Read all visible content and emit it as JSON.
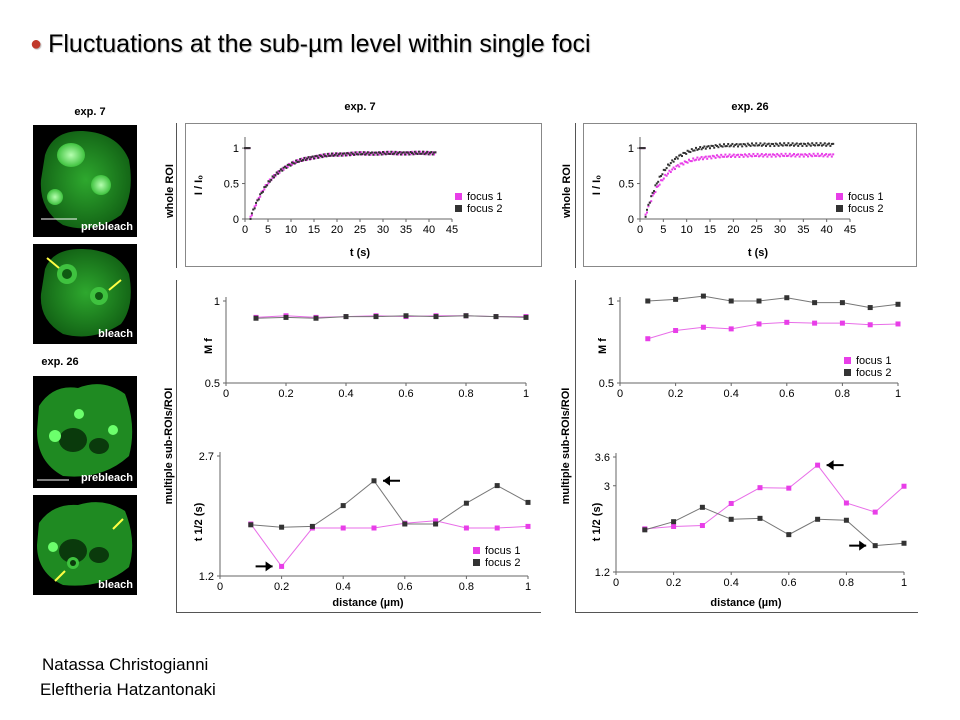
{
  "title": "Fluctuations at the sub-µm level within single foci",
  "images": {
    "exp7_header": "exp. 7",
    "exp26_header": "exp. 26",
    "prebleach": "prebleach",
    "bleach": "bleach"
  },
  "columns": {
    "left": "exp. 7",
    "right": "exp. 26"
  },
  "row_labels": {
    "top": "whole ROI",
    "bottom": "multiple sub-ROIs/ROI"
  },
  "authors": [
    "Natassa Christogianni",
    "Eleftheria Hatzantonaki"
  ],
  "colors": {
    "focus1": "#e83ee8",
    "focus2": "#333333",
    "bullet": "#c0392b",
    "cell_green": "#3fc23f"
  },
  "chart_data": [
    {
      "id": "exp7_whole",
      "type": "scatter",
      "xlabel": "t (s)",
      "ylabel": "I / I₀",
      "xlim": [
        0,
        45
      ],
      "ylim": [
        0,
        1.1
      ],
      "xticks": [
        0,
        5,
        10,
        15,
        20,
        25,
        30,
        35,
        40,
        45
      ],
      "yticks": [
        0,
        0.5,
        1
      ],
      "legend": "right",
      "series": [
        {
          "name": "focus 1",
          "color": "#e83ee8",
          "model": {
            "pre": 1.0,
            "t0": 1.2,
            "start": 0.02,
            "plateau": 0.93,
            "tau": 5.0,
            "t_end": 41.5
          }
        },
        {
          "name": "focus 2",
          "color": "#333333",
          "model": {
            "pre": 1.0,
            "t0": 1.2,
            "start": 0.02,
            "plateau": 0.93,
            "tau": 5.0,
            "t_end": 41.5
          }
        }
      ]
    },
    {
      "id": "exp26_whole",
      "type": "scatter",
      "xlabel": "t (s)",
      "ylabel": "I / I₀",
      "xlim": [
        0,
        45
      ],
      "ylim": [
        0,
        1.1
      ],
      "xticks": [
        0,
        5,
        10,
        15,
        20,
        25,
        30,
        35,
        40,
        45
      ],
      "yticks": [
        0,
        0.5,
        1
      ],
      "legend": "right",
      "series": [
        {
          "name": "focus 1",
          "color": "#e83ee8",
          "model": {
            "pre": 1.0,
            "t0": 1.2,
            "start": 0.05,
            "plateau": 0.9,
            "tau": 4.0,
            "t_end": 41.5
          }
        },
        {
          "name": "focus 2",
          "color": "#333333",
          "model": {
            "pre": 1.0,
            "t0": 1.2,
            "start": 0.05,
            "plateau": 1.05,
            "tau": 4.0,
            "t_end": 41.5
          }
        }
      ]
    },
    {
      "id": "exp7_mf",
      "type": "line",
      "xlabel": "",
      "ylabel": "M f",
      "xlim": [
        0,
        1
      ],
      "ylim": [
        0.5,
        1
      ],
      "xticks": [
        0,
        0.2,
        0.4,
        0.6,
        0.8,
        1
      ],
      "yticks": [
        0.5,
        1
      ],
      "legend": "none",
      "x": [
        0.1,
        0.2,
        0.3,
        0.4,
        0.5,
        0.6,
        0.7,
        0.8,
        0.9,
        1.0
      ],
      "series": [
        {
          "name": "focus 1",
          "color": "#e83ee8",
          "values": [
            0.9,
            0.91,
            0.9,
            0.905,
            0.91,
            0.905,
            0.91,
            0.91,
            0.905,
            0.905
          ]
        },
        {
          "name": "focus 2",
          "color": "#333333",
          "values": [
            0.895,
            0.9,
            0.895,
            0.905,
            0.905,
            0.91,
            0.905,
            0.91,
            0.905,
            0.9
          ]
        }
      ]
    },
    {
      "id": "exp7_thalf",
      "type": "line",
      "xlabel": "distance (µm)",
      "ylabel": "t 1/2 (s)",
      "xlim": [
        0,
        1
      ],
      "ylim": [
        1.2,
        2.7
      ],
      "xticks": [
        0,
        0.2,
        0.4,
        0.6,
        0.8,
        1
      ],
      "yticks": [
        1.2,
        2.7
      ],
      "legend": "bottom-right",
      "x": [
        0.1,
        0.2,
        0.3,
        0.4,
        0.5,
        0.6,
        0.7,
        0.8,
        0.9,
        1.0
      ],
      "series": [
        {
          "name": "focus 1",
          "color": "#e83ee8",
          "values": [
            1.85,
            1.32,
            1.8,
            1.8,
            1.8,
            1.86,
            1.89,
            1.8,
            1.8,
            1.82
          ]
        },
        {
          "name": "focus 2",
          "color": "#333333",
          "values": [
            1.84,
            1.81,
            1.82,
            2.08,
            2.39,
            1.85,
            1.85,
            2.11,
            2.33,
            2.12
          ]
        }
      ],
      "arrows": [
        {
          "x": 0.2,
          "series": 0,
          "side": "left"
        },
        {
          "x": 0.5,
          "series": 1,
          "side": "right"
        }
      ]
    },
    {
      "id": "exp26_mf",
      "type": "line",
      "xlabel": "",
      "ylabel": "M f",
      "xlim": [
        0,
        1
      ],
      "ylim": [
        0.5,
        1
      ],
      "xticks": [
        0,
        0.2,
        0.4,
        0.6,
        0.8,
        1
      ],
      "yticks": [
        0.5,
        1
      ],
      "legend": "bottom-right",
      "x": [
        0.1,
        0.2,
        0.3,
        0.4,
        0.5,
        0.6,
        0.7,
        0.8,
        0.9,
        1.0
      ],
      "series": [
        {
          "name": "focus 1",
          "color": "#e83ee8",
          "values": [
            0.77,
            0.82,
            0.84,
            0.83,
            0.86,
            0.87,
            0.865,
            0.865,
            0.855,
            0.86
          ]
        },
        {
          "name": "focus 2",
          "color": "#333333",
          "values": [
            1.0,
            1.01,
            1.03,
            1.0,
            1.0,
            1.02,
            0.99,
            0.99,
            0.96,
            0.98
          ]
        }
      ]
    },
    {
      "id": "exp26_thalf",
      "type": "line",
      "xlabel": "distance (µm)",
      "ylabel": "t 1/2 (s)",
      "xlim": [
        0,
        1
      ],
      "ylim": [
        1.2,
        3.6
      ],
      "xticks": [
        0,
        0.2,
        0.4,
        0.6,
        0.8,
        1
      ],
      "yticks": [
        1.2,
        3,
        3.6
      ],
      "legend": "none",
      "x": [
        0.1,
        0.2,
        0.3,
        0.4,
        0.5,
        0.6,
        0.7,
        0.8,
        0.9,
        1.0
      ],
      "series": [
        {
          "name": "focus 1",
          "color": "#e83ee8",
          "values": [
            2.1,
            2.15,
            2.17,
            2.63,
            2.96,
            2.95,
            3.43,
            2.64,
            2.45,
            2.99
          ]
        },
        {
          "name": "focus 2",
          "color": "#333333",
          "values": [
            2.08,
            2.25,
            2.55,
            2.3,
            2.32,
            1.98,
            2.3,
            2.28,
            1.75,
            1.8
          ]
        }
      ],
      "arrows": [
        {
          "x": 0.7,
          "series": 0,
          "side": "right"
        },
        {
          "x": 0.9,
          "series": 1,
          "side": "left"
        }
      ]
    }
  ]
}
